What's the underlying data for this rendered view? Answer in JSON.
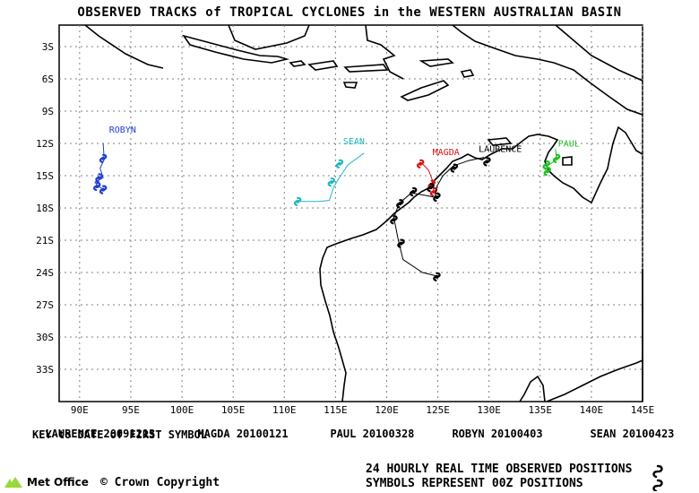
{
  "title": "OBSERVED TRACKS of TROPICAL CYCLONES in the WESTERN AUSTRALIAN BASIN",
  "axes": {
    "x_ticks": [
      "90E",
      "95E",
      "100E",
      "105E",
      "110E",
      "115E",
      "120E",
      "125E",
      "130E",
      "135E",
      "140E",
      "145E"
    ],
    "y_ticks": [
      "3S",
      "6S",
      "9S",
      "12S",
      "15S",
      "18S",
      "21S",
      "24S",
      "27S",
      "30S",
      "33S"
    ],
    "lon_range": [
      88,
      145
    ],
    "lat_range": [
      -36,
      -1
    ]
  },
  "storms": [
    {
      "name": "ROBYN",
      "color": "#1f3fd0",
      "label_lon": 94.2,
      "label_lat": -11.0,
      "track": [
        [
          92.3,
          -12.0
        ],
        [
          92.4,
          -13.5
        ],
        [
          92.0,
          -14.3
        ],
        [
          92.3,
          -15.2
        ],
        [
          91.5,
          -15.6
        ],
        [
          91.8,
          -16.0
        ],
        [
          92.2,
          -16.2
        ]
      ],
      "symbols": [
        [
          92.3,
          -13.4
        ],
        [
          91.9,
          -15.2
        ],
        [
          91.7,
          -16.0
        ],
        [
          92.3,
          -16.3
        ]
      ]
    },
    {
      "name": "SEAN",
      "color": "#20b8c0",
      "label_lon": 116.8,
      "label_lat": -12.1,
      "track": [
        [
          117.8,
          -12.9
        ],
        [
          116.2,
          -14.0
        ],
        [
          115.3,
          -15.3
        ],
        [
          114.8,
          -16.1
        ],
        [
          114.4,
          -17.3
        ],
        [
          113.3,
          -17.4
        ],
        [
          111.3,
          -17.4
        ]
      ],
      "symbols": [
        [
          115.4,
          -13.9
        ],
        [
          114.6,
          -15.6
        ],
        [
          111.3,
          -17.4
        ]
      ]
    },
    {
      "name": "MAGDA",
      "color": "#e01010",
      "label_lon": 125.8,
      "label_lat": -13.1,
      "track": [
        [
          123.4,
          -13.8
        ],
        [
          124.1,
          -14.5
        ],
        [
          124.5,
          -15.5
        ],
        [
          124.6,
          -16.5
        ]
      ],
      "symbols": [
        [
          123.3,
          -13.9
        ],
        [
          124.4,
          -15.8
        ],
        [
          124.6,
          -16.5
        ]
      ]
    },
    {
      "name": "LAURENCE",
      "color": "#000000",
      "label_lon": 131.1,
      "label_lat": -12.8,
      "track": [
        [
          129.5,
          -13.3
        ],
        [
          128.0,
          -13.6
        ],
        [
          126.5,
          -14.1
        ],
        [
          125.5,
          -15.0
        ],
        [
          124.9,
          -16.0
        ],
        [
          124.7,
          -17.0
        ],
        [
          123.6,
          -16.8
        ],
        [
          122.4,
          -16.6
        ],
        [
          121.2,
          -17.6
        ],
        [
          120.7,
          -18.9
        ],
        [
          121.1,
          -20.8
        ],
        [
          121.6,
          -22.8
        ],
        [
          123.5,
          -24.0
        ],
        [
          124.8,
          -24.3
        ]
      ],
      "symbols": [
        [
          129.8,
          -13.7
        ],
        [
          126.6,
          -14.3
        ],
        [
          124.3,
          -16.1
        ],
        [
          124.9,
          -17.0
        ],
        [
          122.6,
          -16.5
        ],
        [
          121.3,
          -17.6
        ],
        [
          120.7,
          -19.1
        ],
        [
          121.4,
          -21.3
        ],
        [
          124.9,
          -24.4
        ]
      ]
    },
    {
      "name": "PAUL",
      "color": "#20c020",
      "label_lon": 137.8,
      "label_lat": -12.3,
      "track": [
        [
          136.5,
          -12.5
        ],
        [
          136.6,
          -13.5
        ],
        [
          135.7,
          -14.1
        ],
        [
          135.5,
          -14.5
        ]
      ],
      "symbols": [
        [
          136.6,
          -13.4
        ],
        [
          135.6,
          -14.0
        ],
        [
          135.7,
          -14.6
        ]
      ]
    }
  ],
  "legend": {
    "dates": [
      {
        "name": "LAURENCE",
        "date": "20091213"
      },
      {
        "name": "MAGDA",
        "date": "20100121"
      },
      {
        "name": "PAUL",
        "date": "20100328"
      },
      {
        "name": "ROBYN",
        "date": "20100403"
      },
      {
        "name": "SEAN",
        "date": "20100423"
      }
    ],
    "key_text": "KEY to DATE of FIRST SYMBOL"
  },
  "footer": {
    "org": "Met Office",
    "copyright": "Crown Copyright",
    "line1": "24 HOURLY REAL TIME OBSERVED POSITIONS",
    "line2": "SYMBOLS REPRESENT 00Z POSITIONS"
  }
}
